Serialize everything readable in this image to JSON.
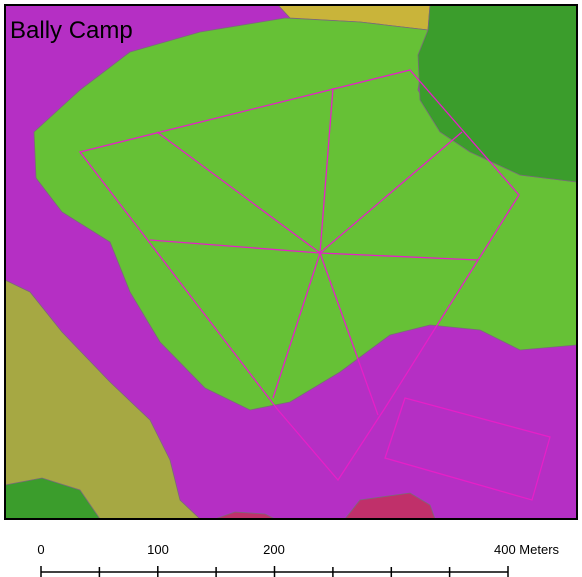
{
  "map": {
    "title": "Bally Camp"
  },
  "scale_bar": {
    "labels": [
      "0",
      "100",
      "200",
      "400 Meters"
    ]
  }
}
